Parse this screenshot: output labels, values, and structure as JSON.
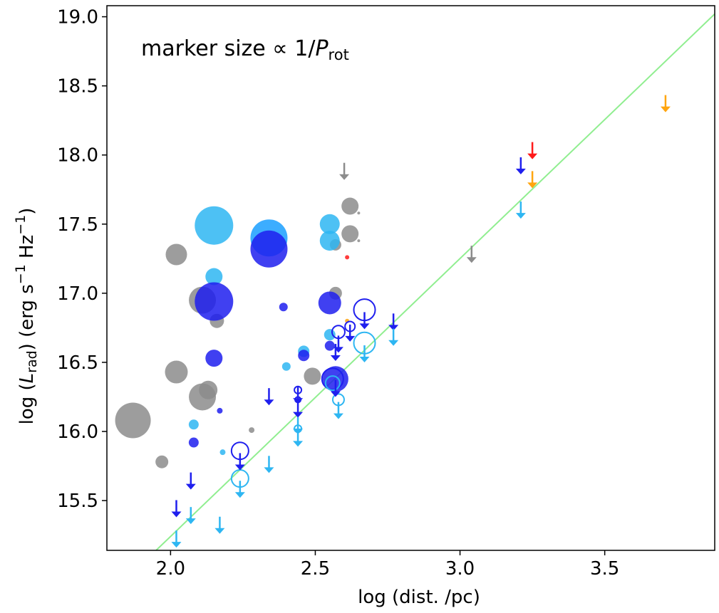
{
  "chart_data": {
    "type": "scatter",
    "xlabel": "log (dist. /pc)",
    "ylabel": "log (L_rad) (erg s^-1 Hz^-1)",
    "ylabel_parts": {
      "pre": "log (",
      "L": "L",
      "sub": "rad",
      "mid": ") (erg s",
      "exp1": "−1",
      "mid2": " Hz",
      "exp2": "−1",
      "post": ")"
    },
    "annotation": {
      "pre": "marker size  ∝  1/",
      "P": "P",
      "sub": "rot"
    },
    "xlim": [
      1.78,
      3.88
    ],
    "ylim": [
      15.14,
      19.08
    ],
    "xticks": [
      2.0,
      2.5,
      3.0,
      3.5
    ],
    "xtick_labels": [
      "2.0",
      "2.5",
      "3.0",
      "3.5"
    ],
    "yticks": [
      15.5,
      16.0,
      16.5,
      17.0,
      17.5,
      18.0,
      18.5,
      19.0
    ],
    "ytick_labels": [
      "15.5",
      "16.0",
      "16.5",
      "17.0",
      "17.5",
      "18.0",
      "18.5",
      "19.0"
    ],
    "grid": false,
    "colors": {
      "gray": "#8c8c8c",
      "blue": "#1f1fee",
      "lightblue": "#2eb6f2",
      "deepskyblue": "#1a9fff",
      "orange": "#ffa50f",
      "red": "#ff1a1a",
      "line": "#90ee90"
    },
    "line": {
      "x": [
        1.95,
        3.88
      ],
      "y": [
        15.14,
        19.02
      ]
    },
    "filled_points": [
      {
        "x": 1.87,
        "y": 16.08,
        "size": 25,
        "color": "gray"
      },
      {
        "x": 1.97,
        "y": 15.78,
        "size": 9,
        "color": "gray"
      },
      {
        "x": 2.02,
        "y": 17.28,
        "size": 15,
        "color": "gray"
      },
      {
        "x": 2.02,
        "y": 16.43,
        "size": 16,
        "color": "gray"
      },
      {
        "x": 2.11,
        "y": 16.95,
        "size": 19,
        "color": "gray"
      },
      {
        "x": 2.11,
        "y": 16.25,
        "size": 19,
        "color": "gray"
      },
      {
        "x": 2.13,
        "y": 16.3,
        "size": 13,
        "color": "gray"
      },
      {
        "x": 2.16,
        "y": 16.8,
        "size": 10,
        "color": "gray"
      },
      {
        "x": 2.28,
        "y": 16.01,
        "size": 4,
        "color": "gray"
      },
      {
        "x": 2.49,
        "y": 16.4,
        "size": 12,
        "color": "gray"
      },
      {
        "x": 2.57,
        "y": 17.0,
        "size": 9,
        "color": "gray"
      },
      {
        "x": 2.57,
        "y": 17.35,
        "size": 8,
        "color": "gray"
      },
      {
        "x": 2.62,
        "y": 17.63,
        "size": 12,
        "color": "gray"
      },
      {
        "x": 2.62,
        "y": 17.43,
        "size": 12,
        "color": "gray"
      },
      {
        "x": 2.65,
        "y": 17.58,
        "size": 2,
        "color": "gray"
      },
      {
        "x": 2.65,
        "y": 17.38,
        "size": 2,
        "color": "gray"
      },
      {
        "x": 2.15,
        "y": 17.49,
        "size": 27,
        "color": "lightblue"
      },
      {
        "x": 2.15,
        "y": 17.12,
        "size": 12,
        "color": "lightblue"
      },
      {
        "x": 2.08,
        "y": 16.05,
        "size": 7,
        "color": "lightblue"
      },
      {
        "x": 2.18,
        "y": 15.85,
        "size": 4,
        "color": "lightblue"
      },
      {
        "x": 2.4,
        "y": 16.47,
        "size": 6,
        "color": "lightblue"
      },
      {
        "x": 2.46,
        "y": 16.58,
        "size": 8,
        "color": "lightblue"
      },
      {
        "x": 2.55,
        "y": 17.5,
        "size": 14,
        "color": "lightblue"
      },
      {
        "x": 2.55,
        "y": 17.38,
        "size": 14,
        "color": "lightblue"
      },
      {
        "x": 2.55,
        "y": 16.7,
        "size": 8,
        "color": "lightblue"
      },
      {
        "x": 2.34,
        "y": 17.4,
        "size": 26,
        "color": "deepskyblue"
      },
      {
        "x": 2.15,
        "y": 16.94,
        "size": 27,
        "color": "blue"
      },
      {
        "x": 2.15,
        "y": 16.53,
        "size": 12,
        "color": "blue"
      },
      {
        "x": 2.34,
        "y": 17.32,
        "size": 26,
        "color": "blue"
      },
      {
        "x": 2.08,
        "y": 15.92,
        "size": 7,
        "color": "blue"
      },
      {
        "x": 2.17,
        "y": 16.15,
        "size": 4,
        "color": "blue"
      },
      {
        "x": 2.39,
        "y": 16.9,
        "size": 6,
        "color": "blue"
      },
      {
        "x": 2.46,
        "y": 16.55,
        "size": 8,
        "color": "blue"
      },
      {
        "x": 2.55,
        "y": 16.93,
        "size": 16,
        "color": "blue"
      },
      {
        "x": 2.55,
        "y": 16.62,
        "size": 7,
        "color": "blue"
      },
      {
        "x": 2.57,
        "y": 16.38,
        "size": 18,
        "color": "blue"
      },
      {
        "x": 2.61,
        "y": 17.26,
        "size": 3,
        "color": "red"
      },
      {
        "x": 2.61,
        "y": 16.8,
        "size": 3,
        "color": "orange"
      }
    ],
    "open_points": [
      {
        "x": 2.24,
        "y": 15.86,
        "size": 12,
        "color": "blue"
      },
      {
        "x": 2.24,
        "y": 15.66,
        "size": 12,
        "color": "lightblue"
      },
      {
        "x": 2.44,
        "y": 16.3,
        "size": 5,
        "color": "blue"
      },
      {
        "x": 2.44,
        "y": 16.23,
        "size": 4,
        "color": "blue"
      },
      {
        "x": 2.44,
        "y": 16.02,
        "size": 5,
        "color": "lightblue"
      },
      {
        "x": 2.56,
        "y": 16.38,
        "size": 15,
        "color": "blue"
      },
      {
        "x": 2.56,
        "y": 16.35,
        "size": 10,
        "color": "lightblue"
      },
      {
        "x": 2.58,
        "y": 16.72,
        "size": 9,
        "color": "blue"
      },
      {
        "x": 2.58,
        "y": 16.23,
        "size": 8,
        "color": "lightblue"
      },
      {
        "x": 2.62,
        "y": 16.76,
        "size": 7,
        "color": "blue"
      },
      {
        "x": 2.67,
        "y": 16.88,
        "size": 15,
        "color": "blue"
      },
      {
        "x": 2.67,
        "y": 16.64,
        "size": 15,
        "color": "lightblue"
      }
    ],
    "upper_limits": [
      {
        "x": 2.02,
        "y": 15.39,
        "color": "blue"
      },
      {
        "x": 2.02,
        "y": 15.17,
        "color": "lightblue"
      },
      {
        "x": 2.07,
        "y": 15.59,
        "color": "blue"
      },
      {
        "x": 2.07,
        "y": 15.34,
        "color": "lightblue"
      },
      {
        "x": 2.17,
        "y": 15.27,
        "color": "lightblue"
      },
      {
        "x": 2.24,
        "y": 15.73,
        "color": "blue"
      },
      {
        "x": 2.24,
        "y": 15.53,
        "color": "lightblue"
      },
      {
        "x": 2.34,
        "y": 16.2,
        "color": "blue"
      },
      {
        "x": 2.34,
        "y": 15.71,
        "color": "lightblue"
      },
      {
        "x": 2.44,
        "y": 16.21,
        "color": "blue"
      },
      {
        "x": 2.44,
        "y": 16.11,
        "color": "blue"
      },
      {
        "x": 2.44,
        "y": 15.99,
        "color": "lightblue"
      },
      {
        "x": 2.44,
        "y": 15.9,
        "color": "lightblue"
      },
      {
        "x": 2.57,
        "y": 16.52,
        "color": "blue"
      },
      {
        "x": 2.57,
        "y": 16.26,
        "color": "blue"
      },
      {
        "x": 2.58,
        "y": 16.58,
        "color": "blue"
      },
      {
        "x": 2.58,
        "y": 16.1,
        "color": "lightblue"
      },
      {
        "x": 2.6,
        "y": 17.83,
        "color": "gray"
      },
      {
        "x": 2.62,
        "y": 16.66,
        "color": "blue"
      },
      {
        "x": 2.67,
        "y": 16.75,
        "color": "blue"
      },
      {
        "x": 2.67,
        "y": 16.51,
        "color": "lightblue"
      },
      {
        "x": 2.77,
        "y": 16.74,
        "color": "blue"
      },
      {
        "x": 2.77,
        "y": 16.63,
        "color": "lightblue"
      },
      {
        "x": 3.04,
        "y": 17.23,
        "color": "gray"
      },
      {
        "x": 3.21,
        "y": 17.87,
        "color": "blue"
      },
      {
        "x": 3.21,
        "y": 17.55,
        "color": "lightblue"
      },
      {
        "x": 3.25,
        "y": 17.98,
        "color": "red"
      },
      {
        "x": 3.25,
        "y": 17.77,
        "color": "orange"
      },
      {
        "x": 3.71,
        "y": 18.32,
        "color": "orange"
      }
    ]
  }
}
